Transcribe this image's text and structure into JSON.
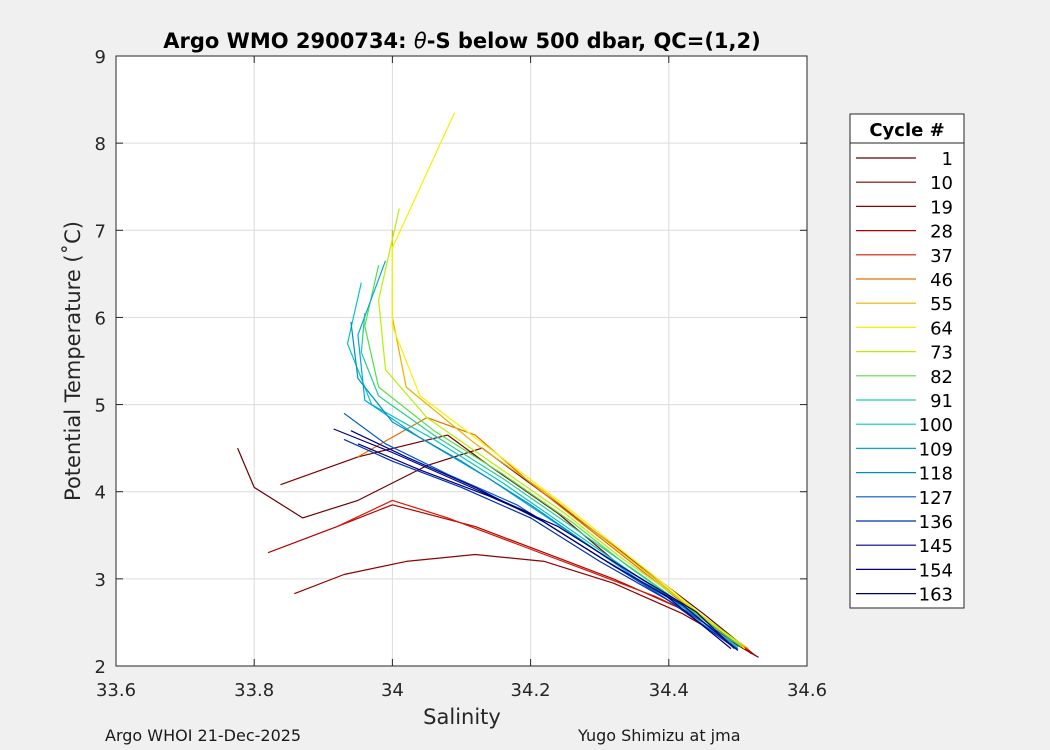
{
  "chart_data": {
    "type": "line",
    "title_prefix": "Argo WMO 2900734: ",
    "title_theta": "θ",
    "title_suffix": "-S below 500 dbar,  QC=(1,2)",
    "xlabel": "Salinity",
    "ylabel": "Potential Temperature (˚C)",
    "xlim": [
      33.6,
      34.6
    ],
    "ylim": [
      2,
      9
    ],
    "xticks": [
      33.6,
      33.8,
      34.0,
      34.2,
      34.4,
      34.6
    ],
    "xtick_labels": [
      "33.6",
      "33.8",
      "34",
      "34.2",
      "34.4",
      "34.6"
    ],
    "yticks": [
      2,
      3,
      4,
      5,
      6,
      7,
      8,
      9
    ],
    "ytick_labels": [
      "2",
      "3",
      "4",
      "5",
      "6",
      "7",
      "8",
      "9"
    ],
    "grid": true,
    "legend_title": "Cycle #",
    "legend_position": "right-outside",
    "series": [
      {
        "name": "1",
        "color": "#6a0000",
        "values": [
          [
            33.776,
            4.5
          ],
          [
            33.8,
            4.05
          ],
          [
            33.87,
            3.7
          ],
          [
            33.95,
            3.9
          ],
          [
            34.05,
            4.3
          ],
          [
            34.13,
            4.5
          ],
          [
            34.25,
            3.8
          ],
          [
            34.35,
            3.2
          ],
          [
            34.45,
            2.6
          ],
          [
            34.525,
            2.12
          ]
        ]
      },
      {
        "name": "10",
        "color": "#7c0000",
        "values": [
          [
            33.838,
            4.08
          ],
          [
            33.95,
            4.4
          ],
          [
            34.08,
            4.65
          ],
          [
            34.14,
            4.3
          ],
          [
            34.24,
            3.75
          ],
          [
            34.33,
            3.15
          ],
          [
            34.43,
            2.65
          ],
          [
            34.52,
            2.14
          ]
        ]
      },
      {
        "name": "19",
        "color": "#900000",
        "values": [
          [
            33.858,
            2.83
          ],
          [
            33.93,
            3.05
          ],
          [
            34.02,
            3.2
          ],
          [
            34.12,
            3.28
          ],
          [
            34.22,
            3.2
          ],
          [
            34.32,
            2.95
          ],
          [
            34.42,
            2.6
          ],
          [
            34.53,
            2.1
          ]
        ]
      },
      {
        "name": "28",
        "color": "#b40000",
        "values": [
          [
            33.82,
            3.3
          ],
          [
            33.92,
            3.6
          ],
          [
            34.0,
            3.85
          ],
          [
            34.12,
            3.6
          ],
          [
            34.22,
            3.3
          ],
          [
            34.32,
            3.0
          ],
          [
            34.42,
            2.65
          ],
          [
            34.52,
            2.15
          ]
        ]
      },
      {
        "name": "37",
        "color": "#d81800",
        "values": [
          [
            33.92,
            3.6
          ],
          [
            34.0,
            3.9
          ],
          [
            34.08,
            3.7
          ],
          [
            34.18,
            3.4
          ],
          [
            34.28,
            3.1
          ],
          [
            34.38,
            2.8
          ],
          [
            34.46,
            2.5
          ],
          [
            34.515,
            2.18
          ]
        ]
      },
      {
        "name": "46",
        "color": "#e27000",
        "values": [
          [
            33.95,
            4.4
          ],
          [
            34.05,
            4.85
          ],
          [
            34.12,
            4.65
          ],
          [
            34.2,
            4.1
          ],
          [
            34.28,
            3.6
          ],
          [
            34.36,
            3.1
          ],
          [
            34.44,
            2.6
          ],
          [
            34.515,
            2.2
          ]
        ]
      },
      {
        "name": "55",
        "color": "#e8b000",
        "values": [
          [
            34.0,
            7.0
          ],
          [
            34.0,
            6.0
          ],
          [
            34.02,
            5.2
          ],
          [
            34.12,
            4.55
          ],
          [
            34.22,
            4.0
          ],
          [
            34.3,
            3.5
          ],
          [
            34.38,
            3.0
          ],
          [
            34.45,
            2.55
          ],
          [
            34.515,
            2.2
          ]
        ]
      },
      {
        "name": "64",
        "color": "#f8f000",
        "values": [
          [
            34.09,
            8.35
          ],
          [
            34.0,
            6.8
          ],
          [
            34.0,
            5.9
          ],
          [
            34.04,
            5.1
          ],
          [
            34.14,
            4.5
          ],
          [
            34.24,
            3.9
          ],
          [
            34.32,
            3.4
          ],
          [
            34.4,
            2.9
          ],
          [
            34.46,
            2.5
          ],
          [
            34.51,
            2.2
          ]
        ]
      },
      {
        "name": "73",
        "color": "#b8f000",
        "values": [
          [
            34.01,
            7.25
          ],
          [
            33.98,
            6.2
          ],
          [
            33.99,
            5.4
          ],
          [
            34.05,
            4.85
          ],
          [
            34.15,
            4.3
          ],
          [
            34.25,
            3.75
          ],
          [
            34.33,
            3.25
          ],
          [
            34.41,
            2.8
          ],
          [
            34.51,
            2.22
          ]
        ]
      },
      {
        "name": "82",
        "color": "#50e040",
        "values": [
          [
            33.98,
            6.6
          ],
          [
            33.96,
            5.9
          ],
          [
            33.98,
            5.2
          ],
          [
            34.06,
            4.7
          ],
          [
            34.16,
            4.2
          ],
          [
            34.26,
            3.65
          ],
          [
            34.34,
            3.15
          ],
          [
            34.42,
            2.7
          ],
          [
            34.505,
            2.22
          ]
        ]
      },
      {
        "name": "91",
        "color": "#20d090",
        "values": [
          [
            33.96,
            6.05
          ],
          [
            33.955,
            5.6
          ],
          [
            33.98,
            5.1
          ],
          [
            34.06,
            4.65
          ],
          [
            34.16,
            4.15
          ],
          [
            34.26,
            3.6
          ],
          [
            34.35,
            3.1
          ],
          [
            34.43,
            2.65
          ],
          [
            34.505,
            2.22
          ]
        ]
      },
      {
        "name": "100",
        "color": "#00c8c0",
        "values": [
          [
            33.955,
            6.4
          ],
          [
            33.935,
            5.7
          ],
          [
            33.97,
            5.0
          ],
          [
            34.06,
            4.6
          ],
          [
            34.16,
            4.1
          ],
          [
            34.26,
            3.55
          ],
          [
            34.35,
            3.05
          ],
          [
            34.43,
            2.62
          ],
          [
            34.5,
            2.22
          ]
        ]
      },
      {
        "name": "109",
        "color": "#00a8e0",
        "values": [
          [
            33.99,
            6.65
          ],
          [
            33.95,
            5.8
          ],
          [
            33.96,
            5.05
          ],
          [
            34.04,
            4.62
          ],
          [
            34.14,
            4.15
          ],
          [
            34.24,
            3.62
          ],
          [
            34.34,
            3.08
          ],
          [
            34.42,
            2.64
          ],
          [
            34.5,
            2.2
          ]
        ]
      },
      {
        "name": "118",
        "color": "#0090c0",
        "values": [
          [
            33.94,
            5.95
          ],
          [
            33.95,
            5.3
          ],
          [
            34.0,
            4.8
          ],
          [
            34.1,
            4.35
          ],
          [
            34.2,
            3.85
          ],
          [
            34.3,
            3.3
          ],
          [
            34.4,
            2.8
          ],
          [
            34.5,
            2.2
          ]
        ]
      },
      {
        "name": "127",
        "color": "#0058c8",
        "values": [
          [
            33.93,
            4.9
          ],
          [
            33.99,
            4.55
          ],
          [
            34.08,
            4.2
          ],
          [
            34.18,
            3.85
          ],
          [
            34.28,
            3.35
          ],
          [
            34.38,
            2.85
          ],
          [
            34.45,
            2.5
          ],
          [
            34.5,
            2.18
          ]
        ]
      },
      {
        "name": "136",
        "color": "#0030b0",
        "values": [
          [
            33.93,
            4.6
          ],
          [
            34.0,
            4.35
          ],
          [
            34.1,
            4.05
          ],
          [
            34.2,
            3.7
          ],
          [
            34.3,
            3.2
          ],
          [
            34.4,
            2.75
          ],
          [
            34.5,
            2.18
          ]
        ]
      },
      {
        "name": "145",
        "color": "#000090",
        "values": [
          [
            33.94,
            4.7
          ],
          [
            34.02,
            4.4
          ],
          [
            34.12,
            4.05
          ],
          [
            34.22,
            3.65
          ],
          [
            34.32,
            3.15
          ],
          [
            34.42,
            2.7
          ],
          [
            34.5,
            2.18
          ]
        ]
      },
      {
        "name": "154",
        "color": "#000080",
        "values": [
          [
            33.915,
            4.72
          ],
          [
            34.0,
            4.45
          ],
          [
            34.1,
            4.1
          ],
          [
            34.2,
            3.75
          ],
          [
            34.3,
            3.25
          ],
          [
            34.4,
            2.78
          ],
          [
            34.49,
            2.2
          ]
        ]
      },
      {
        "name": "163",
        "color": "#000070",
        "values": [
          [
            33.95,
            4.55
          ],
          [
            34.04,
            4.25
          ],
          [
            34.14,
            3.95
          ],
          [
            34.24,
            3.6
          ],
          [
            34.34,
            3.1
          ],
          [
            34.44,
            2.62
          ],
          [
            34.495,
            2.2
          ]
        ]
      }
    ]
  },
  "footer": {
    "left": "Argo WHOI 21-Dec-2025",
    "right": "Yugo Shimizu at jma"
  }
}
